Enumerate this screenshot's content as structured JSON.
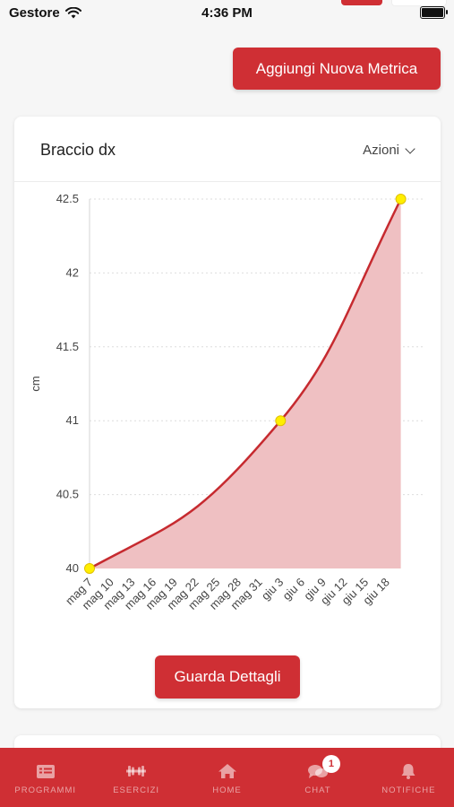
{
  "status_bar": {
    "carrier": "Gestore",
    "time": "4:36 PM"
  },
  "add_metric_label": "Aggiungi Nuova Metrica",
  "card": {
    "title": "Braccio dx",
    "actions_label": "Azioni",
    "details_label": "Guarda Dettagli"
  },
  "chart_data": {
    "type": "area",
    "title": "",
    "xlabel": "",
    "ylabel": "cm",
    "ylim": [
      40,
      42.5
    ],
    "yticks": [
      "40",
      "40.5",
      "41",
      "41.5",
      "42",
      "42.5"
    ],
    "xticks": [
      "mag 7",
      "mag 10",
      "mag 13",
      "mag 16",
      "mag 19",
      "mag 22",
      "mag 25",
      "mag 28",
      "mag 31",
      "giu 3",
      "giu 6",
      "giu 9",
      "giu 12",
      "giu 15",
      "giu 18"
    ],
    "series": [
      {
        "points": [
          {
            "x": "mag 7",
            "y": 40
          },
          {
            "x": "giu 3",
            "y": 41
          },
          {
            "x": "giu 20",
            "y": 42.5
          }
        ]
      }
    ],
    "colors": {
      "line": "#c62a2f",
      "fill": "#efc0c2",
      "point": "#ffee00",
      "grid": "#dddddd"
    },
    "grid": true
  },
  "tabs": [
    {
      "label": "PROGRAMMI",
      "icon": "list-icon"
    },
    {
      "label": "ESERCIZI",
      "icon": "dumbbell-icon"
    },
    {
      "label": "HOME",
      "icon": "home-icon"
    },
    {
      "label": "CHAT",
      "icon": "chat-icon",
      "badge": "1"
    },
    {
      "label": "NOTIFICHE",
      "icon": "bell-icon"
    }
  ]
}
